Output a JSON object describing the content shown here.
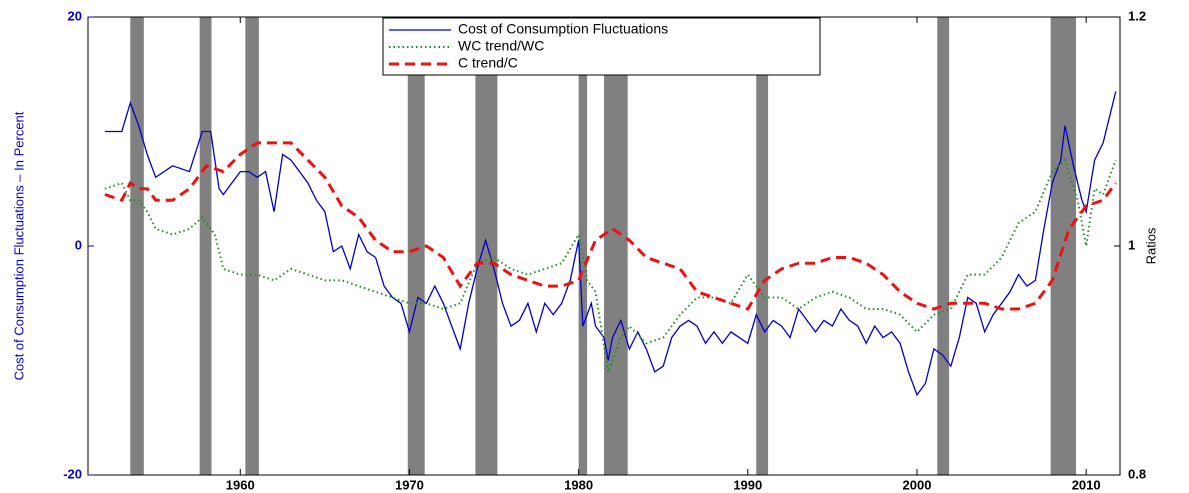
{
  "chart_data": {
    "type": "line",
    "ylabel": "Cost of Consumption Fluctuations – In Percent",
    "y2label": "Ratios",
    "xlim": [
      1951,
      2012
    ],
    "xticks": [
      1960,
      1970,
      1980,
      1990,
      2000,
      2010
    ],
    "ylim": [
      -20,
      20
    ],
    "yticks": [
      -20,
      0,
      20
    ],
    "y2lim": [
      0.8,
      1.2
    ],
    "y2ticks": [
      0.8,
      1,
      1.2
    ],
    "legend": "upper center",
    "shading_color": "#808080",
    "shaded_periods": [
      [
        1953.5,
        1954.3
      ],
      [
        1957.6,
        1958.3
      ],
      [
        1960.3,
        1961.1
      ],
      [
        1969.9,
        1970.9
      ],
      [
        1973.9,
        1975.2
      ],
      [
        1980.0,
        1980.5
      ],
      [
        1981.5,
        1982.9
      ],
      [
        1990.5,
        1991.2
      ],
      [
        2001.2,
        2001.9
      ],
      [
        2007.9,
        2009.4
      ]
    ],
    "series": [
      {
        "name": "Cost of Consumption Fluctuations",
        "color": "#0000cc",
        "style": "solid",
        "x": [
          1952,
          1953,
          1953.5,
          1954,
          1954.5,
          1955,
          1956,
          1957,
          1957.75,
          1958.25,
          1958.75,
          1959,
          1960,
          1960.5,
          1961,
          1961.5,
          1962,
          1962.5,
          1963,
          1964,
          1964.5,
          1965,
          1965.5,
          1966,
          1966.5,
          1967,
          1967.5,
          1968,
          1968.5,
          1969,
          1969.5,
          1970,
          1970.5,
          1971,
          1971.5,
          1972,
          1972.5,
          1973,
          1973.5,
          1974,
          1974.5,
          1975,
          1975.5,
          1976,
          1976.5,
          1977,
          1977.5,
          1978,
          1978.5,
          1979,
          1979.5,
          1980,
          1980.25,
          1980.75,
          1981,
          1981.5,
          1981.75,
          1982,
          1982.5,
          1983,
          1983.5,
          1984,
          1984.5,
          1985,
          1985.5,
          1986,
          1986.5,
          1987,
          1987.5,
          1988,
          1988.5,
          1989,
          1989.5,
          1990,
          1990.5,
          1991,
          1991.5,
          1992,
          1992.5,
          1993,
          1993.5,
          1994,
          1994.5,
          1995,
          1995.5,
          1996,
          1996.5,
          1997,
          1997.5,
          1998,
          1998.5,
          1999,
          1999.5,
          2000,
          2000.5,
          2001,
          2001.5,
          2002,
          2002.5,
          2003,
          2003.5,
          2004,
          2004.5,
          2005,
          2005.5,
          2006,
          2006.5,
          2007,
          2007.5,
          2008,
          2008.5,
          2008.75,
          2009.25,
          2009.75,
          2010,
          2010.5,
          2011,
          2011.75
        ],
        "values": [
          10,
          10,
          12.5,
          10.5,
          8,
          6,
          7,
          6.5,
          10,
          10,
          5,
          4.5,
          6.5,
          6.5,
          6,
          6.5,
          3,
          8,
          7.5,
          5.5,
          4,
          3,
          -0.5,
          0,
          -2,
          1,
          -0.5,
          -1,
          -3.5,
          -4.5,
          -5,
          -7.5,
          -4.5,
          -5,
          -3.5,
          -5,
          -7,
          -9,
          -5,
          -2,
          0.5,
          -2,
          -5,
          -7,
          -6.5,
          -5,
          -7.5,
          -5,
          -6,
          -5,
          -3,
          0.5,
          -7,
          -5,
          -7,
          -8,
          -10,
          -8,
          -6.5,
          -9,
          -7.5,
          -9,
          -11,
          -10.5,
          -8,
          -7,
          -6.5,
          -7,
          -8.5,
          -7.5,
          -8.5,
          -7.5,
          -8,
          -8.5,
          -6,
          -7.5,
          -6.5,
          -7,
          -8,
          -5.5,
          -6.5,
          -7.5,
          -6.5,
          -7,
          -5.5,
          -6.5,
          -7,
          -8.5,
          -7,
          -8,
          -7.5,
          -8.5,
          -11,
          -13,
          -12,
          -9,
          -9.5,
          -10.5,
          -8,
          -4.5,
          -5,
          -7.5,
          -6,
          -5,
          -4,
          -2.5,
          -3.5,
          -3,
          1.5,
          5.5,
          7.5,
          10.5,
          7,
          4,
          3,
          7.5,
          9,
          13.5
        ]
      },
      {
        "name": "WC trend/WC",
        "color": "#228b22",
        "style": "dotted",
        "axis": "y2",
        "x": [
          1952,
          1953,
          1953.5,
          1954,
          1954.5,
          1955,
          1956,
          1957,
          1957.75,
          1958.5,
          1959,
          1960,
          1961,
          1962,
          1963,
          1964,
          1965,
          1966,
          1967,
          1968,
          1969,
          1970,
          1971,
          1972,
          1973,
          1974,
          1975,
          1976,
          1977,
          1978,
          1979,
          1980,
          1980.5,
          1981,
          1981.75,
          1982.5,
          1983,
          1984,
          1985,
          1986,
          1987,
          1988,
          1989,
          1990,
          1991,
          1992,
          1993,
          1994,
          1995,
          1996,
          1997,
          1998,
          1999,
          2000,
          2001,
          2002,
          2003,
          2004,
          2005,
          2006,
          2007,
          2008,
          2008.75,
          2009.5,
          2010,
          2010.5,
          2011,
          2011.75
        ],
        "values": [
          1.05,
          1.055,
          1.04,
          1.04,
          1.03,
          1.015,
          1.01,
          1.015,
          1.025,
          1.01,
          0.98,
          0.975,
          0.975,
          0.97,
          0.98,
          0.975,
          0.97,
          0.97,
          0.965,
          0.96,
          0.955,
          0.95,
          0.95,
          0.945,
          0.95,
          0.985,
          0.99,
          0.98,
          0.975,
          0.98,
          0.985,
          1.01,
          0.97,
          0.96,
          0.89,
          0.92,
          0.93,
          0.915,
          0.92,
          0.94,
          0.955,
          0.955,
          0.95,
          0.975,
          0.955,
          0.955,
          0.945,
          0.955,
          0.96,
          0.955,
          0.945,
          0.945,
          0.94,
          0.925,
          0.94,
          0.945,
          0.975,
          0.975,
          0.99,
          1.02,
          1.03,
          1.065,
          1.075,
          1.04,
          1.0,
          1.05,
          1.045,
          1.075
        ]
      },
      {
        "name": "C trend/C",
        "color": "#ee1111",
        "style": "dashed",
        "axis": "y2",
        "x": [
          1952,
          1953,
          1953.5,
          1954,
          1954.5,
          1955,
          1956,
          1957,
          1958,
          1959,
          1960,
          1961,
          1962,
          1963,
          1964,
          1965,
          1966,
          1967,
          1968,
          1969,
          1970,
          1971,
          1972,
          1973,
          1974,
          1975,
          1976,
          1977,
          1978,
          1979,
          1980,
          1981,
          1982,
          1983,
          1984,
          1985,
          1986,
          1987,
          1988,
          1989,
          1990,
          1991,
          1992,
          1993,
          1994,
          1995,
          1996,
          1997,
          1998,
          1999,
          2000,
          2001,
          2002,
          2003,
          2004,
          2005,
          2006,
          2007,
          2008,
          2009,
          2010,
          2011,
          2011.75
        ],
        "values": [
          1.045,
          1.04,
          1.055,
          1.05,
          1.05,
          1.04,
          1.04,
          1.05,
          1.07,
          1.065,
          1.08,
          1.09,
          1.09,
          1.09,
          1.075,
          1.06,
          1.035,
          1.025,
          1.005,
          0.995,
          0.995,
          1.0,
          0.99,
          0.965,
          0.985,
          0.985,
          0.975,
          0.97,
          0.965,
          0.965,
          0.97,
          1.005,
          1.015,
          1.005,
          0.99,
          0.985,
          0.98,
          0.96,
          0.955,
          0.95,
          0.945,
          0.97,
          0.98,
          0.985,
          0.985,
          0.99,
          0.99,
          0.985,
          0.975,
          0.96,
          0.95,
          0.945,
          0.95,
          0.95,
          0.95,
          0.945,
          0.945,
          0.95,
          0.97,
          1.015,
          1.035,
          1.04,
          1.055
        ]
      }
    ]
  }
}
